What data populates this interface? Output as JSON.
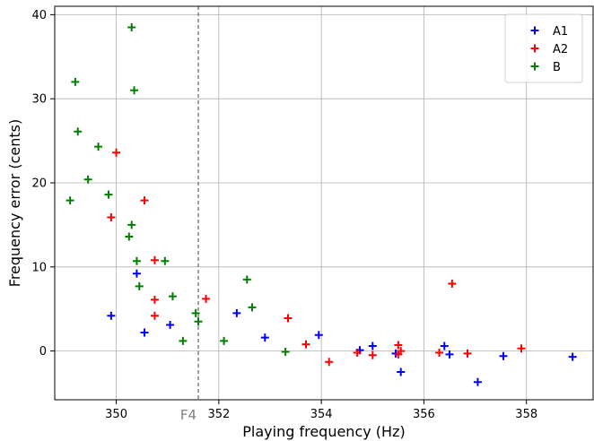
{
  "chart_data": {
    "type": "scatter",
    "xlabel": "Playing frequency (Hz)",
    "ylabel": "Frequency error (cents)",
    "xlim": [
      348.8,
      359.3
    ],
    "ylim": [
      -5.8,
      41.0
    ],
    "x_ticks": [
      350,
      352,
      354,
      356,
      358
    ],
    "y_ticks": [
      0,
      10,
      20,
      30,
      40
    ],
    "grid": true,
    "legend_position": "top-right",
    "reference_line": {
      "x": 351.6,
      "label": "F4",
      "style": "dashed",
      "color": "#808080"
    },
    "series": [
      {
        "name": "A1",
        "color": "#0000ff",
        "marker": "+",
        "points": [
          [
            349.9,
            4.2
          ],
          [
            350.4,
            9.2
          ],
          [
            350.55,
            2.2
          ],
          [
            351.05,
            3.1
          ],
          [
            352.35,
            4.5
          ],
          [
            352.9,
            1.6
          ],
          [
            353.95,
            1.9
          ],
          [
            354.75,
            0.1
          ],
          [
            355.0,
            0.6
          ],
          [
            355.45,
            -0.3
          ],
          [
            355.55,
            -2.5
          ],
          [
            356.4,
            0.6
          ],
          [
            356.5,
            -0.4
          ],
          [
            357.05,
            -3.7
          ],
          [
            357.55,
            -0.6
          ],
          [
            358.9,
            -0.7
          ]
        ]
      },
      {
        "name": "A2",
        "color": "#ff0000",
        "marker": "+",
        "points": [
          [
            349.9,
            15.9
          ],
          [
            350.0,
            23.6
          ],
          [
            350.55,
            17.9
          ],
          [
            350.75,
            10.8
          ],
          [
            350.75,
            6.1
          ],
          [
            350.75,
            4.2
          ],
          [
            351.75,
            6.2
          ],
          [
            353.35,
            3.9
          ],
          [
            353.7,
            0.8
          ],
          [
            354.15,
            -1.3
          ],
          [
            354.7,
            -0.2
          ],
          [
            355.0,
            -0.5
          ],
          [
            355.5,
            0.7
          ],
          [
            355.5,
            -0.4
          ],
          [
            355.55,
            0.0
          ],
          [
            356.3,
            -0.2
          ],
          [
            356.55,
            8.0
          ],
          [
            356.85,
            -0.3
          ],
          [
            357.9,
            0.3
          ]
        ]
      },
      {
        "name": "B",
        "color": "#008000",
        "marker": "+",
        "points": [
          [
            349.1,
            17.9
          ],
          [
            349.2,
            32.0
          ],
          [
            349.25,
            26.1
          ],
          [
            349.45,
            20.4
          ],
          [
            349.65,
            24.3
          ],
          [
            349.85,
            18.6
          ],
          [
            350.25,
            13.6
          ],
          [
            350.3,
            38.5
          ],
          [
            350.3,
            15.0
          ],
          [
            350.35,
            31.0
          ],
          [
            350.4,
            10.7
          ],
          [
            350.45,
            7.7
          ],
          [
            350.95,
            10.7
          ],
          [
            351.1,
            6.5
          ],
          [
            351.3,
            1.2
          ],
          [
            351.55,
            4.5
          ],
          [
            351.6,
            3.5
          ],
          [
            352.1,
            1.2
          ],
          [
            352.55,
            8.5
          ],
          [
            352.65,
            5.2
          ],
          [
            353.3,
            -0.1
          ]
        ]
      }
    ]
  }
}
